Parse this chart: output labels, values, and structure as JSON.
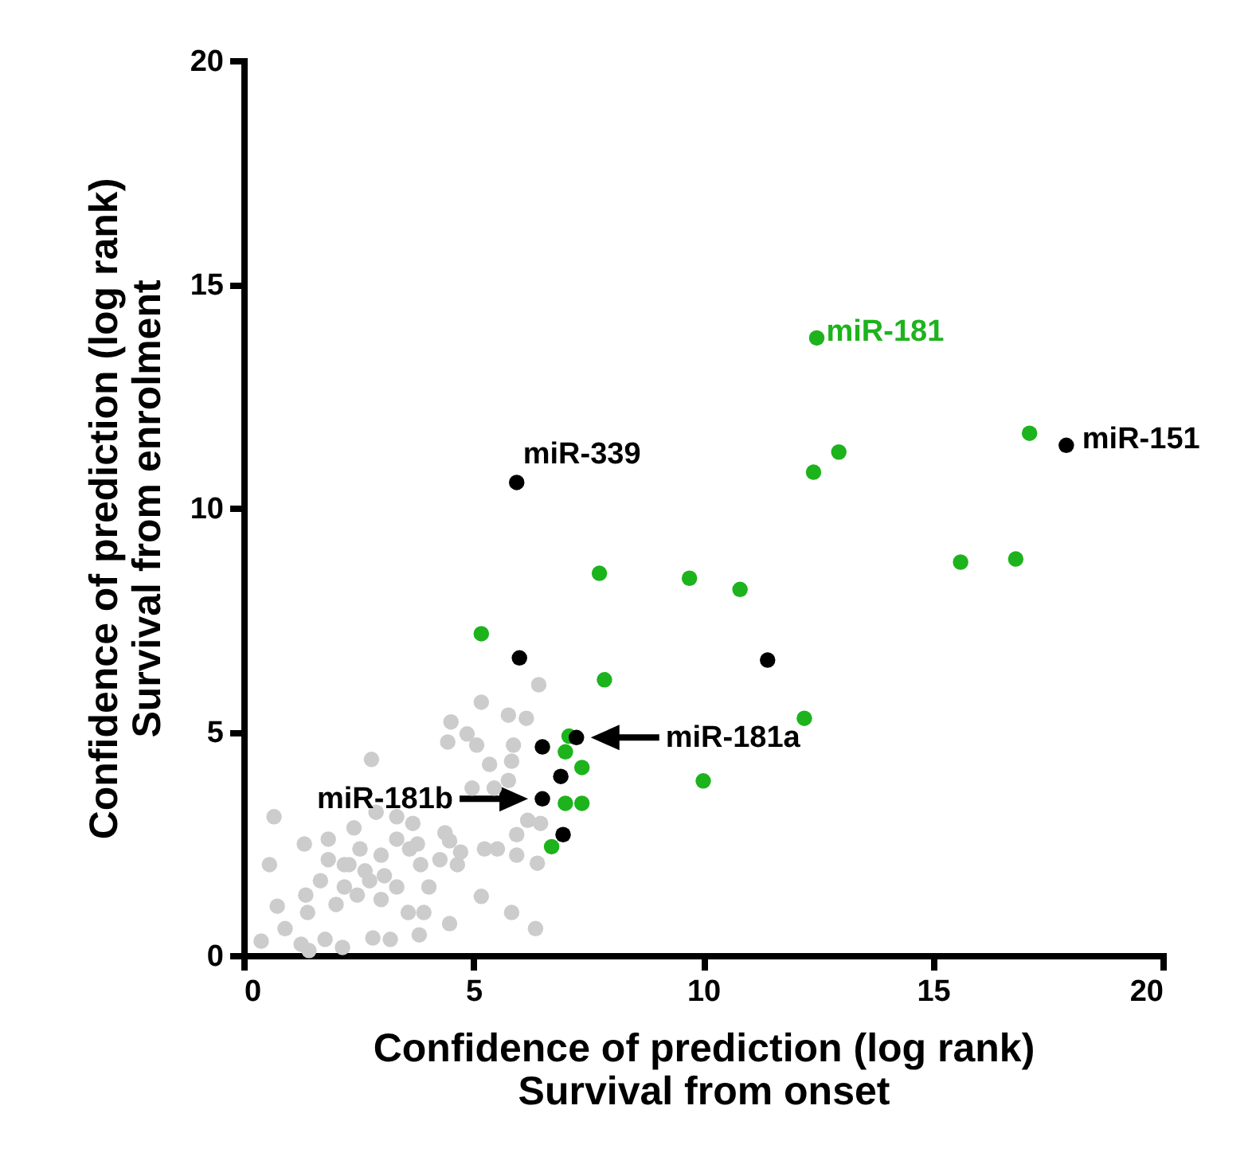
{
  "chart_data": {
    "type": "scatter",
    "xlabel": "Confidence of prediction (log rank)\nSurvival from onset",
    "ylabel": "Confidence of prediction (log rank)\nSurvival from enrolment",
    "xlim": [
      0,
      20
    ],
    "ylim": [
      0,
      20
    ],
    "xticks": [
      0,
      5,
      10,
      15,
      20
    ],
    "yticks": [
      0,
      5,
      10,
      15,
      20
    ],
    "grid": false,
    "legend": false,
    "marker": "circle",
    "series": [
      {
        "color": "#cccccc",
        "x": [
          6.42,
          5.17,
          5.76,
          6.15,
          4.51,
          4.86,
          4.44,
          5.87,
          5.07,
          2.78,
          5.83,
          5.35,
          5.76,
          5.45,
          4.97,
          6.46,
          6.18,
          5.94,
          5.52,
          5.94,
          6.39,
          5.17,
          5.83,
          6.35,
          4.48,
          3.92,
          3.58,
          3.82,
          3.19,
          2.81,
          2.15,
          1.42,
          0.38,
          1.77,
          0.73,
          1.39,
          2.01,
          2.47,
          2.99,
          3.33,
          3.06,
          2.64,
          2.29,
          1.84,
          1.67,
          1.35,
          0.56,
          1.32,
          1.84,
          2.53,
          2.99,
          3.33,
          3.61,
          3.85,
          4.27,
          4.48,
          4.72,
          4.38,
          3.68,
          3.33,
          2.88,
          2.4,
          0.66,
          2.19,
          2.74,
          2.19,
          0.9,
          1.25,
          4.03,
          4.65,
          5.24,
          3.78
        ],
        "values": [
          6.05,
          5.66,
          5.37,
          5.3,
          5.22,
          4.95,
          4.77,
          4.7,
          4.7,
          4.38,
          4.34,
          4.27,
          3.91,
          3.74,
          3.74,
          2.95,
          3.02,
          2.7,
          2.38,
          2.24,
          2.06,
          1.32,
          0.96,
          0.6,
          0.71,
          0.96,
          0.96,
          0.46,
          0.36,
          0.39,
          0.18,
          0.11,
          0.32,
          0.36,
          1.1,
          0.96,
          1.14,
          1.35,
          1.25,
          1.53,
          1.78,
          1.89,
          2.03,
          2.14,
          1.67,
          1.35,
          2.03,
          2.49,
          2.6,
          2.38,
          2.24,
          2.6,
          2.38,
          2.03,
          2.14,
          2.56,
          2.31,
          2.74,
          2.95,
          3.1,
          3.2,
          2.85,
          3.1,
          2.03,
          1.67,
          1.53,
          0.6,
          0.25,
          1.53,
          2.03,
          2.38,
          2.49
        ]
      },
      {
        "color": "#1db31d",
        "x": [
          12.47,
          17.1,
          12.95,
          12.4,
          7.74,
          9.7,
          10.8,
          15.6,
          16.8,
          5.17,
          7.85,
          12.2,
          10.0,
          7.08,
          7.0,
          7.36,
          7.0,
          7.36,
          6.7
        ],
        "values": [
          13.8,
          11.67,
          11.25,
          10.8,
          8.54,
          8.43,
          8.18,
          8.79,
          8.86,
          7.19,
          6.16,
          5.3,
          3.9,
          4.9,
          4.55,
          4.2,
          3.4,
          3.4,
          2.43
        ]
      },
      {
        "color": "#000000",
        "x": [
          17.9,
          5.94,
          6.0,
          11.4,
          6.5,
          7.24,
          6.9,
          6.5,
          6.95
        ],
        "values": [
          11.4,
          10.57,
          6.65,
          6.6,
          4.66,
          4.87,
          4.0,
          3.5,
          2.7
        ]
      }
    ],
    "annotations": [
      {
        "text": "miR-181",
        "x": 12.47,
        "y": 13.8
      },
      {
        "text": "miR-151",
        "x": 17.9,
        "y": 11.4
      },
      {
        "text": "miR-339",
        "x": 5.94,
        "y": 10.57
      },
      {
        "text": "miR-181a",
        "x": 7.24,
        "y": 4.87
      },
      {
        "text": "miR-181b",
        "x": 6.5,
        "y": 3.5
      }
    ]
  }
}
